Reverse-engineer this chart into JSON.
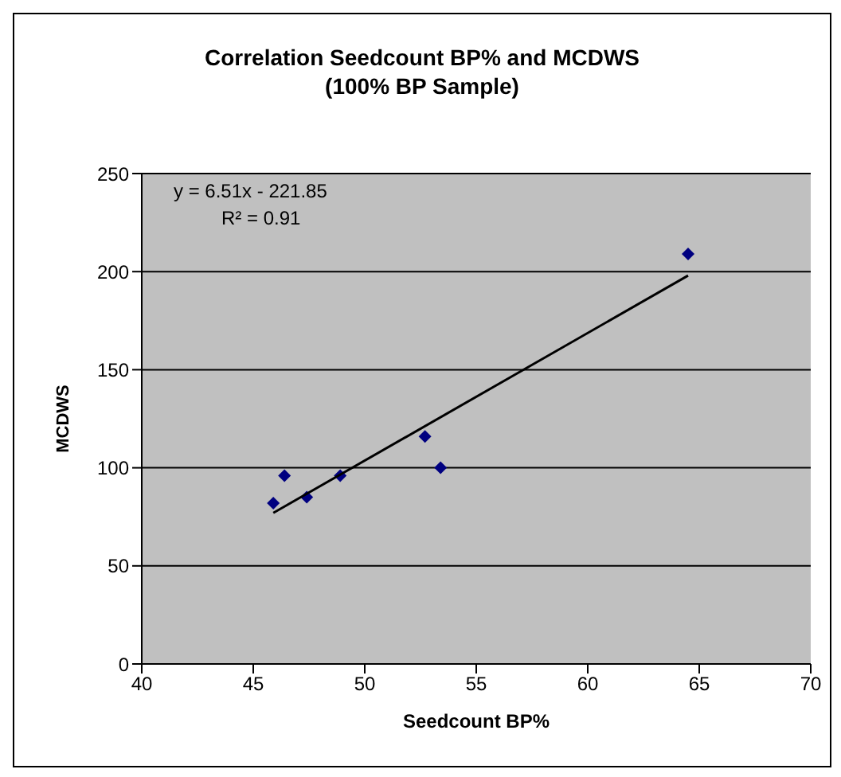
{
  "chart_data": {
    "type": "scatter",
    "title": "Correlation Seedcount BP% and MCDWS\n(100% BP Sample)",
    "xlabel": "Seedcount BP%",
    "ylabel": "MCDWS",
    "series": [
      {
        "color": "#000080",
        "marker": "diamond",
        "x": [
          45.9,
          46.4,
          47.4,
          48.9,
          52.7,
          53.4,
          64.5
        ],
        "values": [
          82,
          96,
          85,
          96,
          116,
          100,
          209
        ]
      },
      {
        "type": "line",
        "marker": "none",
        "color": "#000000",
        "x": [
          45.9,
          64.5
        ],
        "values": [
          77,
          198
        ]
      }
    ],
    "xlim": [
      40,
      70
    ],
    "xticks": [
      40,
      45,
      50,
      55,
      60,
      65,
      70
    ],
    "ylim": [
      0,
      250
    ],
    "yticks": [
      0,
      50,
      100,
      150,
      200,
      250
    ],
    "grid": "y",
    "annotations": [
      "y = 6.51x - 221.85",
      "R² = 0.91"
    ]
  }
}
